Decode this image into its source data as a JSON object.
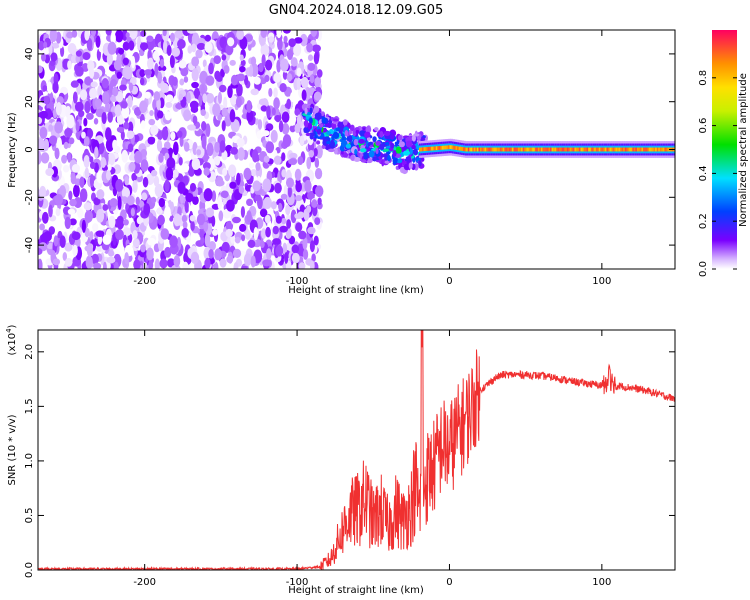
{
  "title": "GN04.2024.018.12.09.G05",
  "chart_data": [
    {
      "type": "heatmap",
      "xlabel": "Height of straight line (km)",
      "ylabel": "Frequency (Hz)",
      "xlim": [
        -270,
        148
      ],
      "ylim": [
        -50,
        50
      ],
      "xticks": [
        -200,
        -100,
        0,
        100
      ],
      "yticks": [
        -40,
        -20,
        0,
        20,
        40
      ],
      "colorbar": {
        "label": "Normalized spectral amplitude",
        "range": [
          0,
          1
        ],
        "ticks": [
          "0.0",
          "0.2",
          "0.4",
          "0.6",
          "0.8"
        ],
        "tick_values": [
          0.0,
          0.2,
          0.4,
          0.6,
          0.8
        ]
      },
      "regions": [
        {
          "name": "noise",
          "x_range": [
            -270,
            -85
          ],
          "freq_range": [
            -50,
            50
          ],
          "amplitude_range": [
            0.0,
            0.12
          ]
        },
        {
          "name": "onset",
          "x_range": [
            -92,
            -20
          ],
          "freq_center": [
            14,
            5,
            0,
            -2,
            -1
          ],
          "amplitude_range": [
            0.1,
            0.55
          ]
        },
        {
          "name": "carrier",
          "x_range": [
            -20,
            148
          ],
          "freq_center": 0,
          "amplitude_range": [
            0.75,
            0.95
          ]
        }
      ],
      "carrier_track": {
        "x": [
          -92,
          -80,
          -70,
          -60,
          -50,
          -40,
          -30,
          -20,
          0,
          10,
          148
        ],
        "freq": [
          12,
          7,
          5,
          2,
          2,
          1,
          -2,
          0,
          1,
          0,
          0
        ]
      }
    },
    {
      "type": "line",
      "xlabel": "Height of straight line (km)",
      "ylabel": "SNR (10 * v/v)",
      "scale_label": "(x10",
      "scale_exp": "4",
      "scale_close": ")",
      "xlim": [
        -270,
        148
      ],
      "ylim": [
        0.0,
        2.2
      ],
      "xticks": [
        -200,
        -100,
        0,
        100
      ],
      "yticks": [
        "0.0",
        "0.5",
        "1.0",
        "1.5",
        "2.0"
      ],
      "ytick_values": [
        0.0,
        0.5,
        1.0,
        1.5,
        2.0
      ],
      "color": "#f03030",
      "series": [
        {
          "x": [
            -270,
            -200,
            -100,
            -85,
            -78,
            -72,
            -66,
            -60,
            -55,
            -50,
            -45,
            -40,
            -35,
            -30,
            -25,
            -22,
            -20,
            -18,
            -15,
            -10,
            -5,
            0,
            5,
            10,
            15,
            20,
            25,
            30,
            35,
            40,
            50,
            60,
            70,
            80,
            90,
            100,
            105,
            110,
            120,
            130,
            140,
            148
          ],
          "y": [
            0.01,
            0.01,
            0.01,
            0.03,
            0.1,
            0.3,
            0.5,
            0.55,
            0.65,
            0.45,
            0.55,
            0.4,
            0.55,
            0.45,
            0.6,
            0.8,
            0.55,
            0.75,
            0.85,
            0.95,
            1.15,
            1.1,
            1.25,
            1.35,
            1.5,
            1.65,
            1.7,
            1.76,
            1.79,
            1.79,
            1.79,
            1.78,
            1.76,
            1.73,
            1.71,
            1.69,
            1.75,
            1.69,
            1.67,
            1.64,
            1.6,
            1.57
          ]
        }
      ],
      "annotations": [
        {
          "x": -18,
          "y": 2.2,
          "note": "spike"
        },
        {
          "x": 105,
          "y": 1.88,
          "note": "spike"
        }
      ]
    }
  ]
}
